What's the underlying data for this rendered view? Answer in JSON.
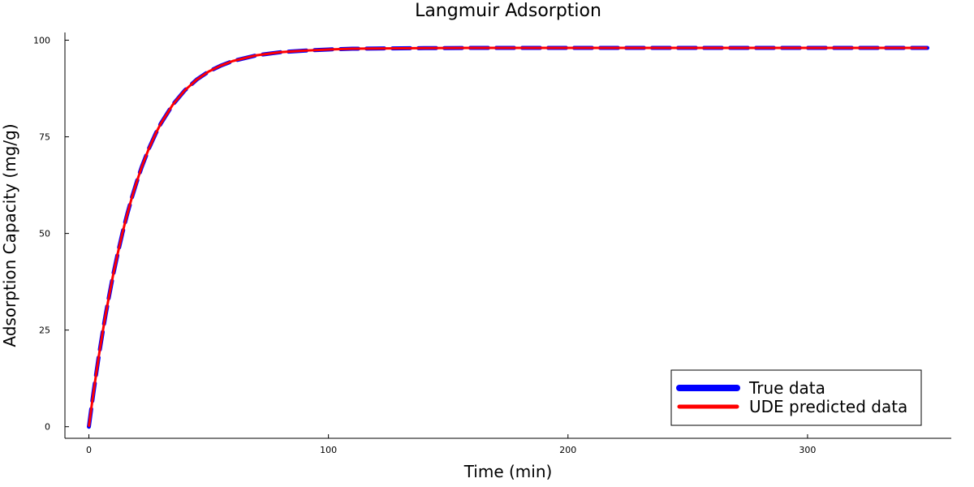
{
  "chart_data": {
    "type": "line",
    "title": "Langmuir Adsorption",
    "xlabel": "Time (min)",
    "ylabel": "Adsorption Capacity (mg/g)",
    "xlim": [
      -10,
      360
    ],
    "ylim": [
      -3,
      102
    ],
    "xticks": [
      0,
      100,
      200,
      300
    ],
    "yticks": [
      0,
      25,
      50,
      75,
      100
    ],
    "grid": false,
    "legend_position": "bottom-right",
    "series": [
      {
        "name": "True data",
        "color": "#0000ff",
        "style": "dashed",
        "x": [
          0,
          1,
          2,
          3,
          4,
          5,
          6,
          7,
          8,
          10,
          12,
          14,
          16,
          18,
          20,
          22,
          25,
          28,
          30,
          35,
          40,
          45,
          50,
          55,
          60,
          70,
          80,
          90,
          100,
          110,
          120,
          140,
          160,
          180,
          200,
          250,
          300,
          350
        ],
        "y": [
          0,
          4.7,
          9.2,
          13.5,
          17.7,
          21.6,
          25.4,
          29.0,
          32.4,
          38.9,
          44.7,
          50.1,
          55.0,
          59.4,
          63.4,
          67.1,
          71.9,
          76.0,
          78.4,
          83.3,
          87.0,
          89.8,
          91.9,
          93.4,
          94.6,
          96.1,
          96.9,
          97.3,
          97.6,
          97.8,
          97.85,
          97.95,
          98.0,
          98.0,
          98.0,
          98.0,
          98.0,
          98.0
        ]
      },
      {
        "name": "UDE predicted data",
        "color": "#ff0000",
        "style": "solid",
        "x": [
          0,
          1,
          2,
          3,
          4,
          5,
          6,
          7,
          8,
          10,
          12,
          14,
          16,
          18,
          20,
          22,
          25,
          28,
          30,
          35,
          40,
          45,
          50,
          55,
          60,
          70,
          80,
          90,
          100,
          110,
          120,
          140,
          160,
          180,
          200,
          250,
          300,
          350
        ],
        "y": [
          0,
          4.7,
          9.2,
          13.5,
          17.7,
          21.6,
          25.4,
          29.0,
          32.4,
          38.9,
          44.7,
          50.1,
          55.0,
          59.4,
          63.4,
          67.1,
          71.9,
          76.0,
          78.4,
          83.3,
          87.0,
          89.8,
          91.9,
          93.4,
          94.6,
          96.1,
          96.9,
          97.3,
          97.6,
          97.8,
          97.85,
          97.95,
          98.0,
          98.0,
          98.0,
          98.0,
          98.0,
          98.0
        ]
      }
    ]
  }
}
